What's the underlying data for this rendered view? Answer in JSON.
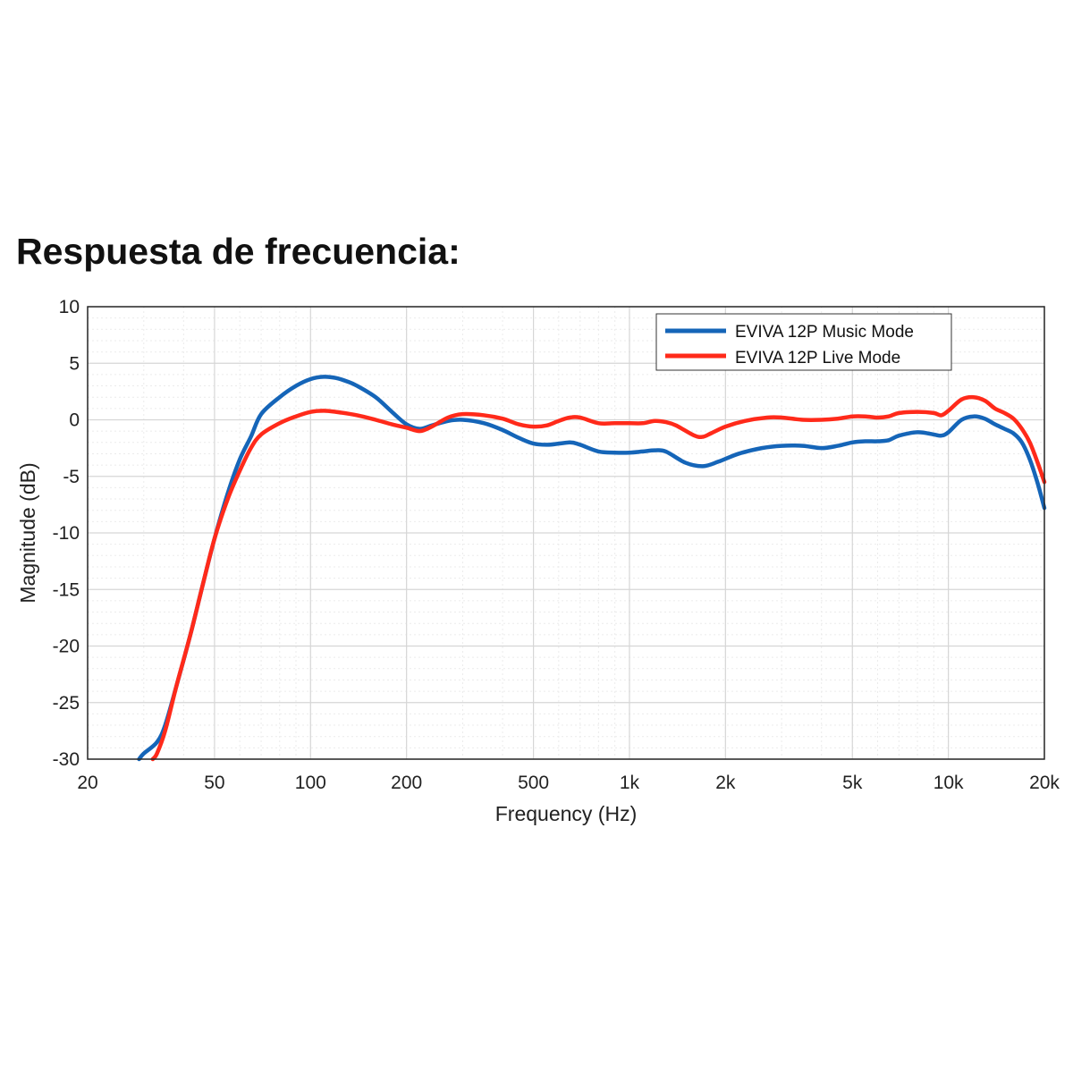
{
  "title": "Respuesta de frecuencia:",
  "colors": {
    "music": "#1565b8",
    "live": "#ff2a1a",
    "grid_major": "#d6d6d6",
    "grid_minor": "#ebebeb",
    "axis": "#262626"
  },
  "chart_data": {
    "type": "line",
    "xlabel": "Frequency (Hz)",
    "ylabel": "Magnitude (dB)",
    "x_scale": "log",
    "xlim": [
      20,
      20000
    ],
    "ylim": [
      -30,
      10
    ],
    "grid": true,
    "legend_position": "top-right",
    "x_ticks": [
      {
        "value": 20,
        "label": "20"
      },
      {
        "value": 50,
        "label": "50"
      },
      {
        "value": 100,
        "label": "100"
      },
      {
        "value": 200,
        "label": "200"
      },
      {
        "value": 500,
        "label": "500"
      },
      {
        "value": 1000,
        "label": "1k"
      },
      {
        "value": 2000,
        "label": "2k"
      },
      {
        "value": 5000,
        "label": "5k"
      },
      {
        "value": 10000,
        "label": "10k"
      },
      {
        "value": 20000,
        "label": "20k"
      }
    ],
    "y_ticks": [
      {
        "value": 10,
        "label": "10"
      },
      {
        "value": 5,
        "label": "5"
      },
      {
        "value": 0,
        "label": "0"
      },
      {
        "value": -5,
        "label": "-5"
      },
      {
        "value": -10,
        "label": "-10"
      },
      {
        "value": -15,
        "label": "-15"
      },
      {
        "value": -20,
        "label": "-20"
      },
      {
        "value": -25,
        "label": "-25"
      },
      {
        "value": -30,
        "label": "-30"
      }
    ],
    "series": [
      {
        "name": "EVIVA 12P Music Mode",
        "color": "#1565b8",
        "points": [
          [
            29,
            -30
          ],
          [
            30,
            -29.5
          ],
          [
            33,
            -28.5
          ],
          [
            35,
            -27
          ],
          [
            38,
            -23.5
          ],
          [
            42,
            -19
          ],
          [
            46,
            -14.5
          ],
          [
            50,
            -10.5
          ],
          [
            55,
            -6.5
          ],
          [
            60,
            -3.5
          ],
          [
            65,
            -1.5
          ],
          [
            70,
            0.5
          ],
          [
            80,
            2
          ],
          [
            90,
            3
          ],
          [
            100,
            3.6
          ],
          [
            110,
            3.8
          ],
          [
            120,
            3.7
          ],
          [
            130,
            3.4
          ],
          [
            140,
            3
          ],
          [
            160,
            2
          ],
          [
            180,
            0.7
          ],
          [
            200,
            -0.4
          ],
          [
            220,
            -0.8
          ],
          [
            240,
            -0.5
          ],
          [
            270,
            -0.1
          ],
          [
            300,
            0
          ],
          [
            350,
            -0.3
          ],
          [
            400,
            -0.9
          ],
          [
            450,
            -1.6
          ],
          [
            500,
            -2.1
          ],
          [
            560,
            -2.2
          ],
          [
            650,
            -2
          ],
          [
            700,
            -2.2
          ],
          [
            800,
            -2.8
          ],
          [
            900,
            -2.9
          ],
          [
            1000,
            -2.9
          ],
          [
            1100,
            -2.8
          ],
          [
            1200,
            -2.7
          ],
          [
            1300,
            -2.8
          ],
          [
            1500,
            -3.8
          ],
          [
            1700,
            -4.1
          ],
          [
            1900,
            -3.7
          ],
          [
            2200,
            -3
          ],
          [
            2600,
            -2.5
          ],
          [
            3000,
            -2.3
          ],
          [
            3500,
            -2.3
          ],
          [
            4000,
            -2.5
          ],
          [
            4500,
            -2.3
          ],
          [
            5000,
            -2
          ],
          [
            5500,
            -1.9
          ],
          [
            6000,
            -1.9
          ],
          [
            6500,
            -1.8
          ],
          [
            7000,
            -1.4
          ],
          [
            8000,
            -1.1
          ],
          [
            9000,
            -1.3
          ],
          [
            9500,
            -1.4
          ],
          [
            10000,
            -1.1
          ],
          [
            11000,
            0
          ],
          [
            12000,
            0.3
          ],
          [
            13000,
            0.1
          ],
          [
            14000,
            -0.4
          ],
          [
            15000,
            -0.8
          ],
          [
            16000,
            -1.2
          ],
          [
            17000,
            -2
          ],
          [
            18000,
            -3.5
          ],
          [
            19000,
            -5.5
          ],
          [
            20000,
            -7.8
          ]
        ]
      },
      {
        "name": "EVIVA 12P Live Mode",
        "color": "#ff2a1a",
        "points": [
          [
            32,
            -30
          ],
          [
            33,
            -29.5
          ],
          [
            35,
            -27.5
          ],
          [
            38,
            -23.5
          ],
          [
            42,
            -19
          ],
          [
            46,
            -14.5
          ],
          [
            50,
            -10.5
          ],
          [
            55,
            -7
          ],
          [
            60,
            -4.5
          ],
          [
            65,
            -2.5
          ],
          [
            70,
            -1.3
          ],
          [
            80,
            -0.3
          ],
          [
            90,
            0.3
          ],
          [
            100,
            0.7
          ],
          [
            110,
            0.8
          ],
          [
            120,
            0.7
          ],
          [
            140,
            0.4
          ],
          [
            160,
            0
          ],
          [
            180,
            -0.4
          ],
          [
            200,
            -0.7
          ],
          [
            220,
            -1
          ],
          [
            240,
            -0.6
          ],
          [
            270,
            0.2
          ],
          [
            300,
            0.5
          ],
          [
            350,
            0.4
          ],
          [
            400,
            0.1
          ],
          [
            450,
            -0.4
          ],
          [
            500,
            -0.6
          ],
          [
            550,
            -0.5
          ],
          [
            600,
            -0.1
          ],
          [
            650,
            0.2
          ],
          [
            700,
            0.2
          ],
          [
            800,
            -0.3
          ],
          [
            900,
            -0.3
          ],
          [
            1000,
            -0.3
          ],
          [
            1100,
            -0.3
          ],
          [
            1200,
            -0.1
          ],
          [
            1300,
            -0.2
          ],
          [
            1400,
            -0.5
          ],
          [
            1600,
            -1.4
          ],
          [
            1700,
            -1.5
          ],
          [
            1800,
            -1.2
          ],
          [
            2000,
            -0.6
          ],
          [
            2300,
            -0.1
          ],
          [
            2700,
            0.2
          ],
          [
            3000,
            0.2
          ],
          [
            3500,
            0
          ],
          [
            4000,
            0
          ],
          [
            4500,
            0.1
          ],
          [
            5000,
            0.3
          ],
          [
            5500,
            0.3
          ],
          [
            6000,
            0.2
          ],
          [
            6500,
            0.3
          ],
          [
            7000,
            0.6
          ],
          [
            8000,
            0.7
          ],
          [
            9000,
            0.6
          ],
          [
            9500,
            0.4
          ],
          [
            10000,
            0.8
          ],
          [
            11000,
            1.8
          ],
          [
            12000,
            2
          ],
          [
            13000,
            1.7
          ],
          [
            14000,
            1
          ],
          [
            15000,
            0.6
          ],
          [
            16000,
            0.1
          ],
          [
            17000,
            -0.8
          ],
          [
            18000,
            -2
          ],
          [
            19000,
            -3.7
          ],
          [
            20000,
            -5.5
          ]
        ]
      }
    ]
  }
}
